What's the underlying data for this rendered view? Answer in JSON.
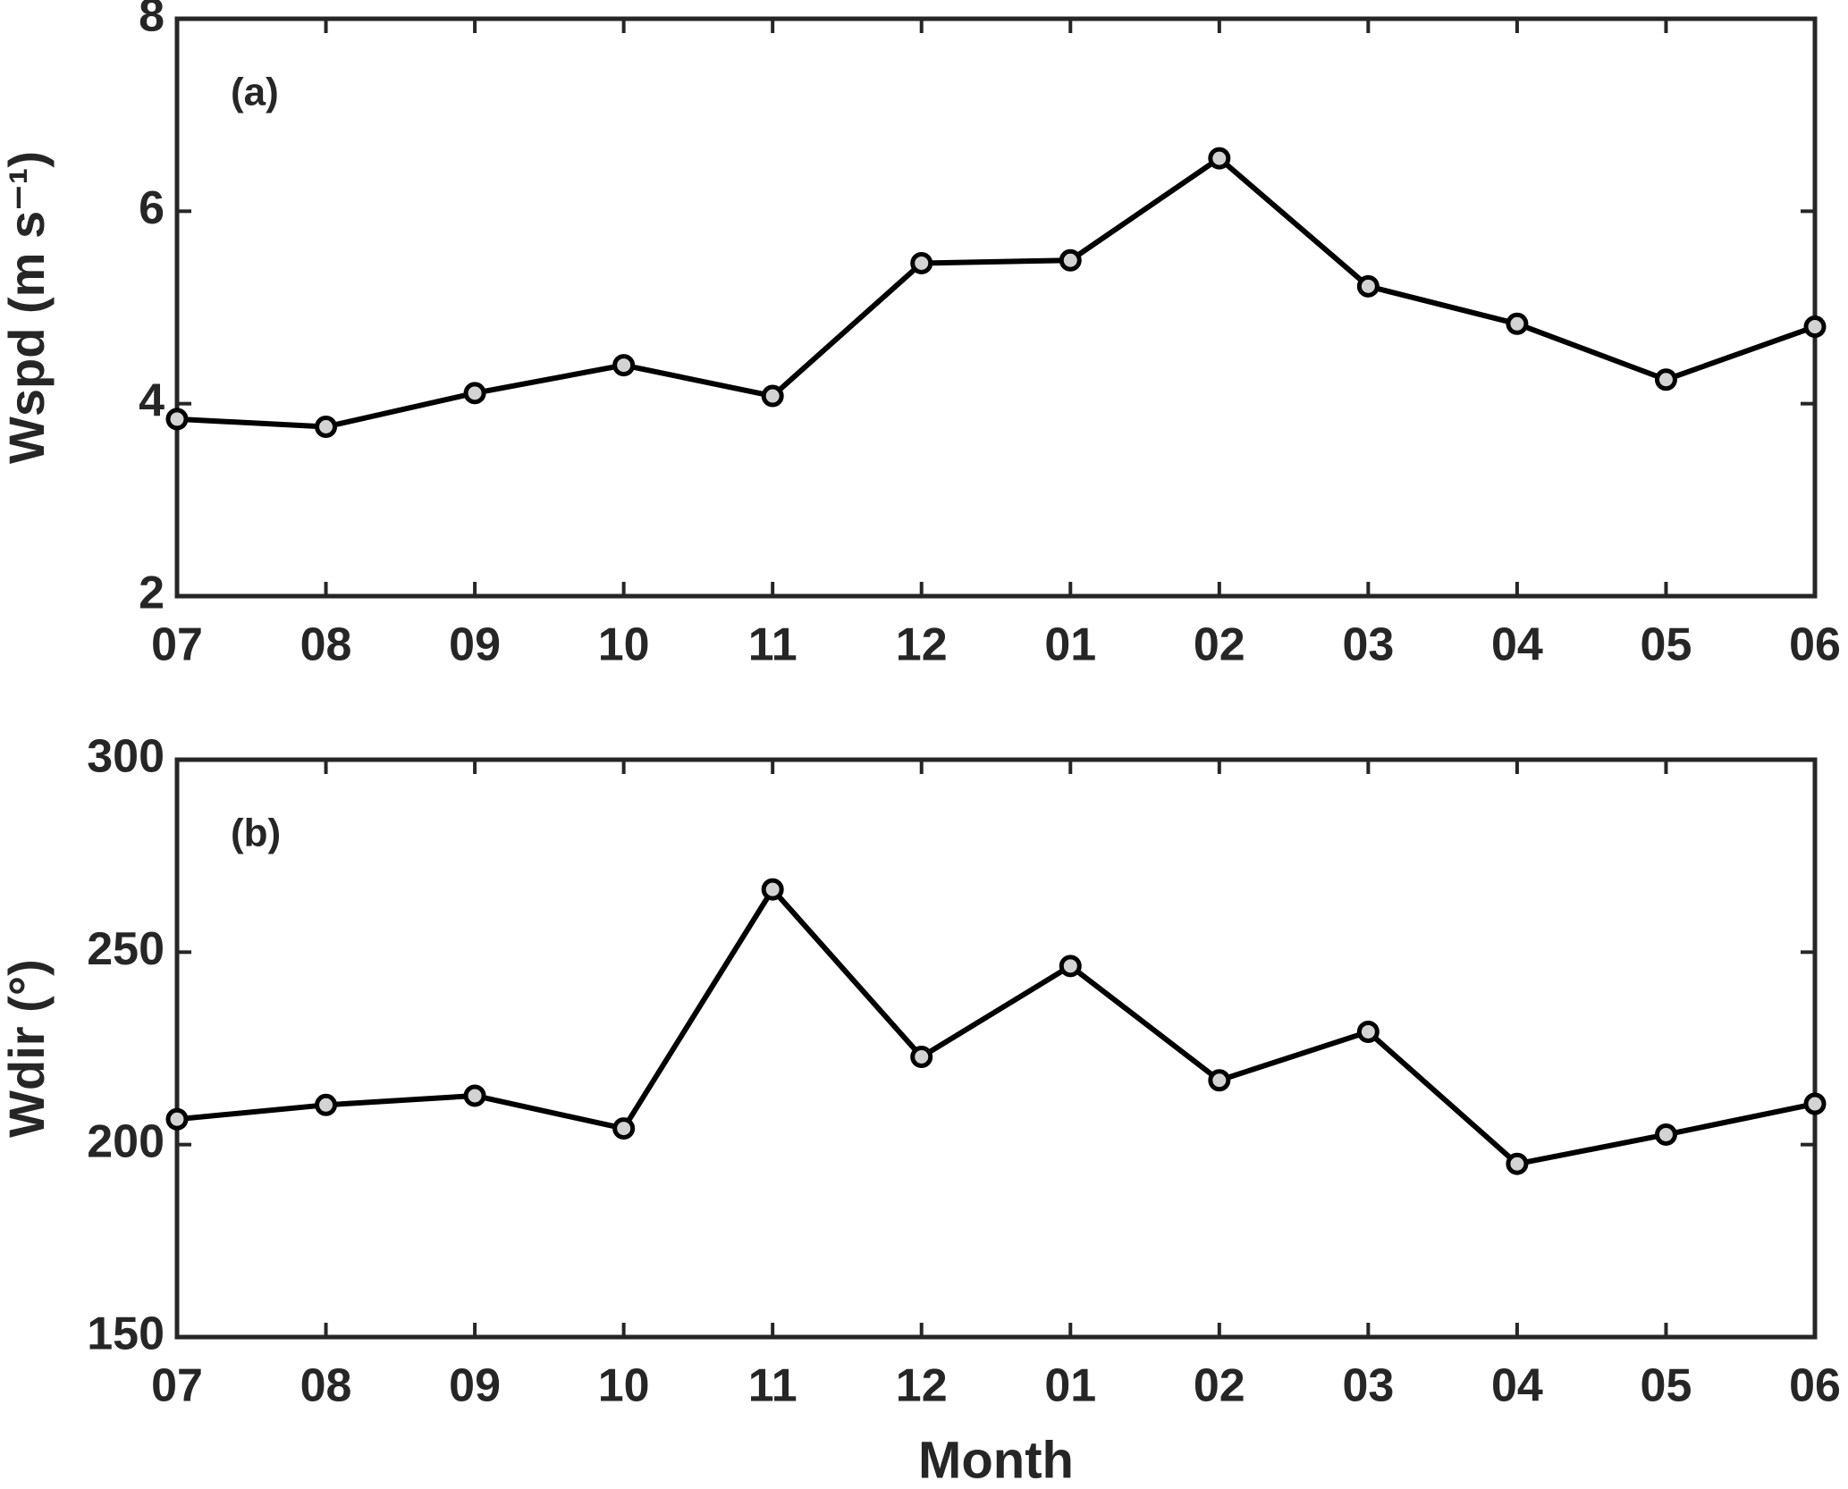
{
  "chart_data": [
    {
      "type": "line",
      "annotation": "(a)",
      "y_label": "Wspd (m s⁻¹)",
      "categories": [
        "07",
        "08",
        "09",
        "10",
        "11",
        "12",
        "01",
        "02",
        "03",
        "04",
        "05",
        "06"
      ],
      "series": [
        {
          "color": "#000000",
          "marker_color": "#d3d3d3",
          "values": [
            3.84,
            3.76,
            4.11,
            4.4,
            4.08,
            5.46,
            5.49,
            6.55,
            5.22,
            4.83,
            4.25,
            4.8
          ]
        }
      ],
      "ylim": [
        2,
        8
      ],
      "yticks": [
        2,
        4,
        6,
        8
      ]
    },
    {
      "type": "line",
      "annotation": "(b)",
      "y_label": "Wdir (°)",
      "x_label": "Month",
      "categories": [
        "07",
        "08",
        "09",
        "10",
        "11",
        "12",
        "01",
        "02",
        "03",
        "04",
        "05",
        "06"
      ],
      "series": [
        {
          "color": "#000000",
          "marker_color": "#d3d3d3",
          "values": [
            206.6,
            210.3,
            212.7,
            204.2,
            266.3,
            222.8,
            246.4,
            216.7,
            229.3,
            195,
            202.6,
            210.6
          ]
        }
      ],
      "ylim": [
        150,
        300
      ],
      "yticks": [
        150,
        200,
        250,
        300
      ]
    }
  ]
}
